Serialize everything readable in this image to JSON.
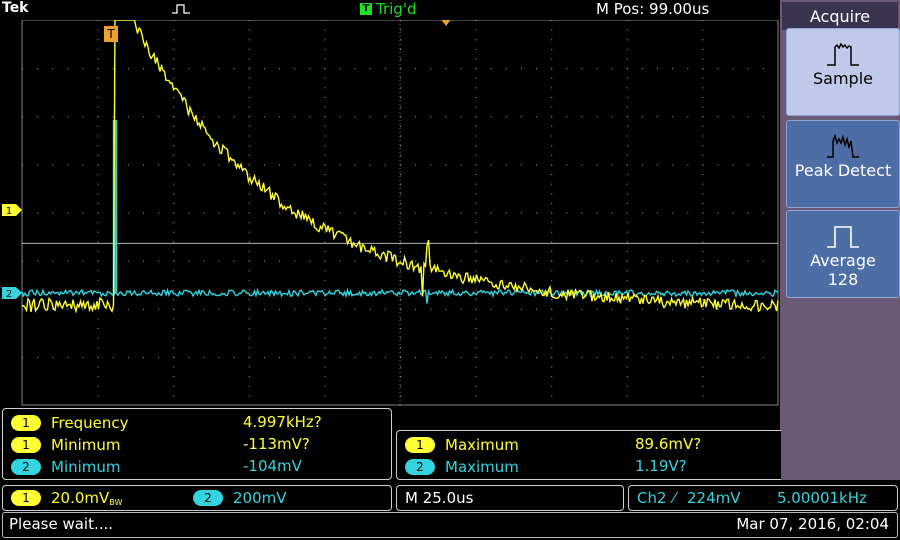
{
  "header": {
    "brand": "Tek",
    "trigger_state_icon": "T",
    "trigger_state": "Trig'd",
    "m_pos": "M Pos: 99.00us"
  },
  "markers": {
    "trigger_marker": "T",
    "ch1_marker": "1",
    "ch2_marker": "2"
  },
  "menu": {
    "title": "Acquire",
    "items": [
      {
        "label": "Sample",
        "sub": "",
        "selected": true,
        "icon": "sample-icon"
      },
      {
        "label": "Peak Detect",
        "sub": "",
        "selected": false,
        "icon": "peak-detect-icon"
      },
      {
        "label": "Average",
        "sub": "128",
        "selected": false,
        "icon": "average-icon"
      }
    ]
  },
  "measurements": {
    "left": [
      {
        "ch": "1",
        "name": "Frequency",
        "value": "4.997kHz?"
      },
      {
        "ch": "1",
        "name": "Minimum",
        "value": "-113mV?"
      },
      {
        "ch": "2",
        "name": "Minimum",
        "value": "-104mV"
      }
    ],
    "right": [
      {
        "ch": "1",
        "name": "Maximum",
        "value": "89.6mV?"
      },
      {
        "ch": "2",
        "name": "Maximum",
        "value": "1.19V?"
      }
    ]
  },
  "settings": {
    "ch1_scale": "20.0mV",
    "ch1_bw": "BW",
    "ch2_scale": "200mV",
    "timebase": "M 25.0us",
    "trigger_source": "Ch2",
    "trigger_edge": "⁄",
    "trigger_level": "224mV",
    "trigger_freq": "5.00001kHz"
  },
  "status": {
    "message": "Please wait....",
    "datetime": "Mar 07, 2016, 02:04"
  },
  "colors": {
    "ch1": "#ffff33",
    "ch2": "#33d4e0",
    "grid": "#bbbbbb",
    "menu_bg": "#6a5a78",
    "button": "#4d6da6",
    "button_selected": "#bfc9ea"
  }
}
